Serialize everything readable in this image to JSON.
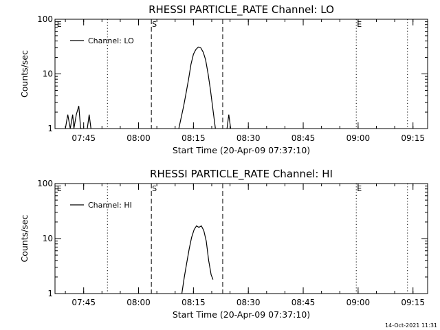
{
  "chart_data": [
    {
      "type": "line",
      "title": "RHESSI PARTICLE_RATE Channel: LO",
      "xlabel": "Start Time (20-Apr-09 07:37:10)",
      "ylabel": "Counts/sec",
      "yscale": "log",
      "ylim": [
        1,
        100
      ],
      "xlim": [
        "07:37:10",
        "09:19:00"
      ],
      "x_ticks": [
        "07:45",
        "08:00",
        "08:15",
        "08:30",
        "08:45",
        "09:00",
        "09:15"
      ],
      "y_ticks": [
        "1",
        "10",
        "100"
      ],
      "legend": {
        "entry": "Channel: LO",
        "position": "top-left"
      },
      "markers": [
        {
          "label": "E",
          "time": "07:37:30",
          "style": "none"
        },
        {
          "label": "",
          "time": "07:51:30",
          "style": "dotted"
        },
        {
          "label": "S",
          "time": "08:03:30",
          "style": "dashed"
        },
        {
          "label": "",
          "time": "08:23:00",
          "style": "dashed"
        },
        {
          "label": "E",
          "time": "08:59:30",
          "style": "dotted"
        },
        {
          "label": "",
          "time": "09:13:30",
          "style": "dotted"
        }
      ],
      "series": [
        {
          "name": "Channel: LO",
          "segments": [
            {
              "x": [
                "07:40:00",
                "07:40:40",
                "07:41:20",
                "07:42:00",
                "07:42:20",
                "07:43:00",
                "07:43:40",
                "07:44:10",
                "07:44:40"
              ],
              "y": [
                1.0,
                1.8,
                1.0,
                1.8,
                1.0,
                1.8,
                2.6,
                1.0,
                1.0
              ]
            },
            {
              "x": [
                "07:46:00",
                "07:46:30",
                "07:47:00"
              ],
              "y": [
                1.0,
                1.8,
                1.0
              ]
            },
            {
              "x": [
                "08:11:00",
                "08:11:40",
                "08:12:20",
                "08:13:00",
                "08:13:40",
                "08:14:20",
                "08:15:00",
                "08:15:40",
                "08:16:20",
                "08:17:00",
                "08:17:40",
                "08:18:20",
                "08:19:00",
                "08:19:40",
                "08:20:20",
                "08:21:00"
              ],
              "y": [
                1.0,
                1.6,
                2.6,
                4.5,
                8.0,
                15.0,
                23.0,
                28.0,
                31.0,
                30.0,
                25.0,
                18.0,
                10.0,
                5.0,
                2.2,
                1.0
              ]
            },
            {
              "x": [
                "08:24:10",
                "08:24:40",
                "08:25:10"
              ],
              "y": [
                1.0,
                1.8,
                1.0
              ]
            }
          ]
        }
      ]
    },
    {
      "type": "line",
      "title": "RHESSI PARTICLE_RATE Channel: HI",
      "xlabel": "Start Time (20-Apr-09 07:37:10)",
      "ylabel": "Counts/sec",
      "yscale": "log",
      "ylim": [
        1,
        100
      ],
      "xlim": [
        "07:37:10",
        "09:19:00"
      ],
      "x_ticks": [
        "07:45",
        "08:00",
        "08:15",
        "08:30",
        "08:45",
        "09:00",
        "09:15"
      ],
      "y_ticks": [
        "1",
        "10",
        "100"
      ],
      "legend": {
        "entry": "Channel: HI",
        "position": "top-left"
      },
      "markers": [
        {
          "label": "E",
          "time": "07:37:30",
          "style": "none"
        },
        {
          "label": "",
          "time": "07:51:30",
          "style": "dotted"
        },
        {
          "label": "S",
          "time": "08:03:30",
          "style": "dashed"
        },
        {
          "label": "",
          "time": "08:23:00",
          "style": "dashed"
        },
        {
          "label": "E",
          "time": "08:59:30",
          "style": "dotted"
        },
        {
          "label": "",
          "time": "09:13:30",
          "style": "dotted"
        }
      ],
      "series": [
        {
          "name": "Channel: HI",
          "segments": [
            {
              "x": [
                "08:11:50",
                "08:12:30",
                "08:13:10",
                "08:13:50",
                "08:14:30",
                "08:15:10",
                "08:15:50",
                "08:16:30",
                "08:17:10",
                "08:17:50",
                "08:18:30",
                "08:19:10",
                "08:19:50",
                "08:20:20"
              ],
              "y": [
                1.0,
                2.0,
                3.6,
                6.5,
                10.5,
                14.5,
                17.0,
                16.0,
                17.0,
                14.0,
                9.0,
                4.0,
                2.2,
                1.8
              ]
            }
          ]
        }
      ]
    }
  ],
  "footer": {
    "timestamp": "14-Oct-2021 11:31"
  }
}
